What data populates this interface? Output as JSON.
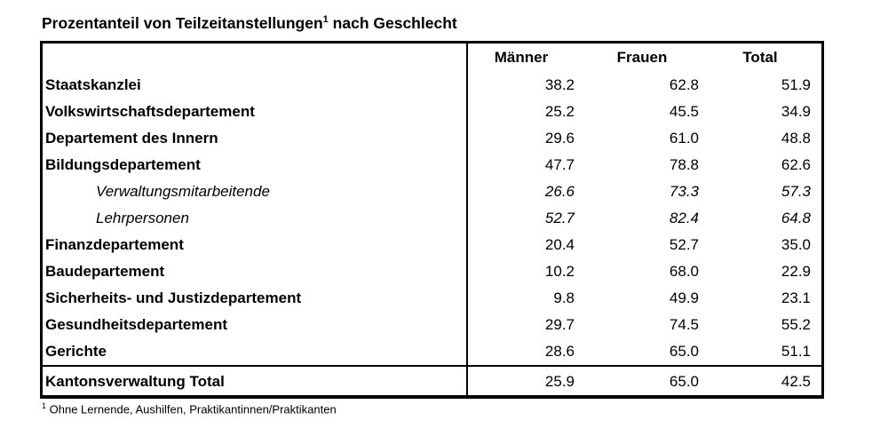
{
  "title": {
    "main": "Prozentanteil von Teilzeitanstellungen",
    "superscript": "1",
    "rest": " nach Geschlecht"
  },
  "table": {
    "columns": [
      "Männer",
      "Frauen",
      "Total"
    ],
    "rows": [
      {
        "label": "Staatskanzlei",
        "type": "department",
        "maenner": "38.2",
        "frauen": "62.8",
        "total": "51.9"
      },
      {
        "label": "Volkswirtschaftsdepartement",
        "type": "department",
        "maenner": "25.2",
        "frauen": "45.5",
        "total": "34.9"
      },
      {
        "label": "Departement des Innern",
        "type": "department",
        "maenner": "29.6",
        "frauen": "61.0",
        "total": "48.8"
      },
      {
        "label": "Bildungsdepartement",
        "type": "department",
        "maenner": "47.7",
        "frauen": "78.8",
        "total": "62.6"
      },
      {
        "label": "Verwaltungsmitarbeitende",
        "type": "subcategory",
        "maenner": "26.6",
        "frauen": "73.3",
        "total": "57.3"
      },
      {
        "label": "Lehrpersonen",
        "type": "subcategory",
        "maenner": "52.7",
        "frauen": "82.4",
        "total": "64.8"
      },
      {
        "label": "Finanzdepartement",
        "type": "department",
        "maenner": "20.4",
        "frauen": "52.7",
        "total": "35.0"
      },
      {
        "label": "Baudepartement",
        "type": "department",
        "maenner": "10.2",
        "frauen": "68.0",
        "total": "22.9"
      },
      {
        "label": "Sicherheits- und Justizdepartement",
        "type": "department",
        "maenner": "9.8",
        "frauen": "49.9",
        "total": "23.1"
      },
      {
        "label": "Gesundheitsdepartement",
        "type": "department",
        "maenner": "29.7",
        "frauen": "74.5",
        "total": "55.2"
      },
      {
        "label": "Gerichte",
        "type": "department",
        "maenner": "28.6",
        "frauen": "65.0",
        "total": "51.1"
      }
    ],
    "total_row": {
      "label": "Kantonsverwaltung Total",
      "maenner": "25.9",
      "frauen": "65.0",
      "total": "42.5"
    }
  },
  "footnote": {
    "superscript": "1",
    "text": " Ohne Lernende, Aushilfen, Praktikantinnen/Praktikanten"
  }
}
